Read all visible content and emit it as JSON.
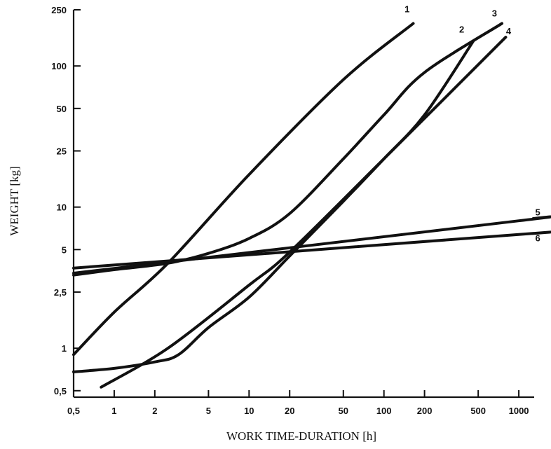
{
  "chart_data": {
    "type": "line",
    "xlabel": "WORK TIME-DURATION [h]",
    "ylabel": "WEIGHT [kg]",
    "x_scale": "log",
    "y_scale": "log",
    "xlim": [
      0.5,
      1300
    ],
    "ylim": [
      0.45,
      250
    ],
    "x_ticks": [
      {
        "value": 0.5,
        "label": "0,5"
      },
      {
        "value": 1,
        "label": "1"
      },
      {
        "value": 2,
        "label": "2"
      },
      {
        "value": 5,
        "label": "5"
      },
      {
        "value": 10,
        "label": "10"
      },
      {
        "value": 20,
        "label": "20"
      },
      {
        "value": 50,
        "label": "50"
      },
      {
        "value": 100,
        "label": "100"
      },
      {
        "value": 200,
        "label": "200"
      },
      {
        "value": 500,
        "label": "500"
      },
      {
        "value": 1000,
        "label": "1000"
      }
    ],
    "y_ticks": [
      {
        "value": 0.5,
        "label": "0,5"
      },
      {
        "value": 1,
        "label": "1"
      },
      {
        "value": 2.5,
        "label": "2,5"
      },
      {
        "value": 5,
        "label": "5"
      },
      {
        "value": 10,
        "label": "10"
      },
      {
        "value": 25,
        "label": "25"
      },
      {
        "value": 50,
        "label": "50"
      },
      {
        "value": 100,
        "label": "100"
      },
      {
        "value": 250,
        "label": "250"
      }
    ],
    "grid": false,
    "series": [
      {
        "name": "1",
        "label_at": [
          0.9,
          1.2
        ],
        "points": [
          [
            0.5,
            0.9
          ],
          [
            1,
            1.8
          ],
          [
            2.5,
            4.0
          ],
          [
            10,
            17
          ],
          [
            50,
            80
          ],
          [
            165,
            200
          ]
        ]
      },
      {
        "name": "2",
        "label_at": [
          0.82,
          1.15
        ],
        "points": [
          [
            0.5,
            0.68
          ],
          [
            1,
            0.72
          ],
          [
            2,
            0.8
          ],
          [
            3,
            0.9
          ],
          [
            5,
            1.4
          ],
          [
            10,
            2.3
          ],
          [
            20,
            4.5
          ],
          [
            50,
            11
          ],
          [
            100,
            22
          ],
          [
            200,
            45
          ],
          [
            460,
            150
          ]
        ]
      },
      {
        "name": "3",
        "label_at": [
          0.88,
          1.12
        ],
        "points": [
          [
            0.5,
            3.3
          ],
          [
            1,
            3.6
          ],
          [
            2.5,
            4.0
          ],
          [
            5,
            4.7
          ],
          [
            10,
            6.0
          ],
          [
            20,
            9.0
          ],
          [
            50,
            22
          ],
          [
            100,
            45
          ],
          [
            200,
            90
          ],
          [
            750,
            200
          ]
        ]
      },
      {
        "name": "4",
        "label_at": [
          1.05,
          1.05
        ],
        "points": [
          [
            0.8,
            0.53
          ],
          [
            2.5,
            1.0
          ],
          [
            10,
            2.8
          ],
          [
            20,
            4.8
          ],
          [
            100,
            22
          ],
          [
            800,
            160
          ]
        ]
      },
      {
        "name": "5",
        "label_at": [
          1.08,
          1.05
        ],
        "points": [
          [
            0.5,
            3.4
          ],
          [
            1000,
            8.0
          ],
          [
            1280,
            8.3
          ]
        ]
      },
      {
        "name": "6",
        "label_at": [
          1.08,
          0.88
        ],
        "points": [
          [
            0.5,
            3.7
          ],
          [
            1000,
            6.4
          ],
          [
            1280,
            6.5
          ]
        ]
      }
    ]
  }
}
